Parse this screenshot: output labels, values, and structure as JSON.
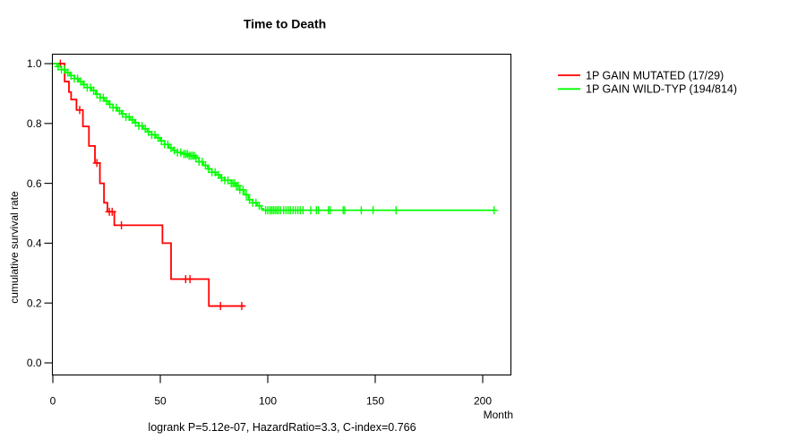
{
  "title": "Time to Death",
  "footer": "logrank P=5.12e-07, HazardRatio=3.3, C-index=0.766",
  "x_axis": {
    "label": "Month",
    "ticks": [
      {
        "v": 0,
        "label": "0"
      },
      {
        "v": 50,
        "label": "50"
      },
      {
        "v": 100,
        "label": "100"
      },
      {
        "v": 150,
        "label": "150"
      },
      {
        "v": 200,
        "label": "200"
      }
    ]
  },
  "y_axis": {
    "label": "cumulative survival rate",
    "ticks": [
      {
        "v": 0.0,
        "label": "0.0"
      },
      {
        "v": 0.2,
        "label": "0.2"
      },
      {
        "v": 0.4,
        "label": "0.4"
      },
      {
        "v": 0.6,
        "label": "0.6"
      },
      {
        "v": 0.8,
        "label": "0.8"
      },
      {
        "v": 1.0,
        "label": "1.0"
      }
    ]
  },
  "legend": [
    {
      "label": "1P GAIN MUTATED (17/29)",
      "color": "#ff0000"
    },
    {
      "label": "1P GAIN WILD-TYP (194/814)",
      "color": "#00ff00"
    }
  ],
  "chart_data": {
    "type": "line",
    "variant": "kaplan-meier-step",
    "title": "Time to Death",
    "xlabel": "Month",
    "ylabel": "cumulative survival rate",
    "xlim": [
      0,
      213
    ],
    "ylim": [
      -0.04,
      1.03
    ],
    "grid": false,
    "legend_position": "right-outside",
    "stats": {
      "logrank_P": "5.12e-07",
      "HazardRatio": "3.3",
      "C_index": "0.766"
    },
    "series": [
      {
        "name": "1P GAIN MUTATED (17/29)",
        "events_over_n": "17/29",
        "color": "#ff0000",
        "line_width": 1.8,
        "points": [
          [
            0,
            1.0
          ],
          [
            5.5,
            0.94
          ],
          [
            7.5,
            0.905
          ],
          [
            8.5,
            0.88
          ],
          [
            11,
            0.845
          ],
          [
            14,
            0.79
          ],
          [
            16.8,
            0.725
          ],
          [
            19.6,
            0.668
          ],
          [
            21.9,
            0.6
          ],
          [
            23.8,
            0.535
          ],
          [
            25.4,
            0.505
          ],
          [
            28.6,
            0.46
          ],
          [
            51,
            0.4
          ],
          [
            55,
            0.28
          ],
          [
            72.6,
            0.19
          ]
        ],
        "end_month": 89.3,
        "censor_marks": [
          3.5,
          12.5,
          20.5,
          26.3,
          27.6,
          31.9,
          61.8,
          63.8,
          78,
          87.9
        ]
      },
      {
        "name": "1P GAIN WILD-TYP (194/814)",
        "events_over_n": "194/814",
        "color": "#00ff00",
        "line_width": 1.8,
        "points": [
          [
            0,
            1.0
          ],
          [
            2,
            0.99
          ],
          [
            4,
            0.98
          ],
          [
            6,
            0.97
          ],
          [
            8,
            0.96
          ],
          [
            10,
            0.95
          ],
          [
            12,
            0.94
          ],
          [
            14,
            0.93
          ],
          [
            16,
            0.92
          ],
          [
            18,
            0.91
          ],
          [
            20,
            0.898
          ],
          [
            22,
            0.886
          ],
          [
            24,
            0.875
          ],
          [
            26,
            0.864
          ],
          [
            28,
            0.853
          ],
          [
            30,
            0.842
          ],
          [
            32,
            0.832
          ],
          [
            34,
            0.822
          ],
          [
            36,
            0.812
          ],
          [
            38,
            0.802
          ],
          [
            40,
            0.792
          ],
          [
            42,
            0.782
          ],
          [
            44,
            0.772
          ],
          [
            46,
            0.762
          ],
          [
            48,
            0.752
          ],
          [
            50,
            0.742
          ],
          [
            52,
            0.73
          ],
          [
            54,
            0.718
          ],
          [
            56,
            0.71
          ],
          [
            58,
            0.703
          ],
          [
            60,
            0.698
          ],
          [
            63,
            0.692
          ],
          [
            66,
            0.685
          ],
          [
            68,
            0.672
          ],
          [
            70,
            0.66
          ],
          [
            72,
            0.648
          ],
          [
            74,
            0.637
          ],
          [
            76,
            0.628
          ],
          [
            78,
            0.618
          ],
          [
            80,
            0.61
          ],
          [
            83,
            0.6
          ],
          [
            85,
            0.592
          ],
          [
            87,
            0.578
          ],
          [
            89,
            0.562
          ],
          [
            91,
            0.545
          ],
          [
            93,
            0.535
          ],
          [
            95,
            0.525
          ],
          [
            97,
            0.515
          ],
          [
            98,
            0.51
          ]
        ],
        "end_month": 205.3,
        "censor_marks": [
          2.5,
          4,
          5.5,
          7,
          8.5,
          10,
          11.5,
          13,
          14.5,
          16,
          17.5,
          19,
          20.5,
          22,
          23.5,
          25,
          26.5,
          28,
          29.5,
          31,
          32.5,
          34,
          35.5,
          37,
          38.5,
          40,
          41.5,
          43,
          44.5,
          46,
          47.5,
          49,
          50.5,
          52,
          53.5,
          55,
          56.5,
          58,
          59.5,
          61,
          61.8,
          62.6,
          63.4,
          64.2,
          65,
          65.8,
          66.6,
          68,
          69.5,
          71,
          72.5,
          74,
          75.5,
          77,
          78.5,
          80,
          81.5,
          83,
          83.8,
          84.6,
          85.4,
          86.2,
          87,
          88.5,
          90,
          91.5,
          93,
          94.5,
          96,
          99,
          100,
          101,
          101.8,
          102.6,
          103.4,
          104.2,
          105,
          106,
          107.4,
          108.5,
          109.5,
          110.5,
          111.8,
          112.9,
          114,
          115.1,
          116.4,
          120,
          122.6,
          123.6,
          128.2,
          129,
          135.1,
          135.8,
          143.5,
          149,
          159.7,
          205.3
        ]
      }
    ]
  }
}
